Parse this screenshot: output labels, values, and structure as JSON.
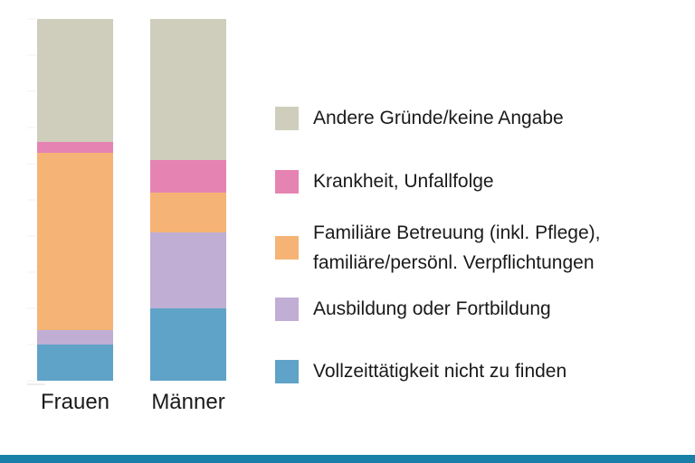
{
  "chart_data": {
    "type": "bar",
    "stacked": true,
    "normalized": true,
    "categories": [
      "Frauen",
      "Männer"
    ],
    "series": [
      {
        "name": "Vollzeittätigkeit nicht zu finden",
        "color": "#5fa3c8",
        "values": [
          10,
          20
        ]
      },
      {
        "name": "Ausbildung oder Fortbildung",
        "color": "#c0aed4",
        "values": [
          4,
          21
        ]
      },
      {
        "name": "Familiäre Betreuung (inkl. Pflege),\nfamiliäre/persönl. Verpflichtungen",
        "color": "#f5b475",
        "values": [
          49,
          11
        ]
      },
      {
        "name": "Krankheit, Unfallfolge",
        "color": "#e584b3",
        "values": [
          3,
          9
        ]
      },
      {
        "name": "Andere Gründe/keine Angabe",
        "color": "#cfcdbc",
        "values": [
          34,
          39
        ]
      }
    ],
    "ylim": [
      0,
      100
    ],
    "grid": true,
    "legend_position": "right"
  },
  "colors": {
    "footer_bar": "#1a7fa8",
    "grid": "#f1f1f1"
  }
}
